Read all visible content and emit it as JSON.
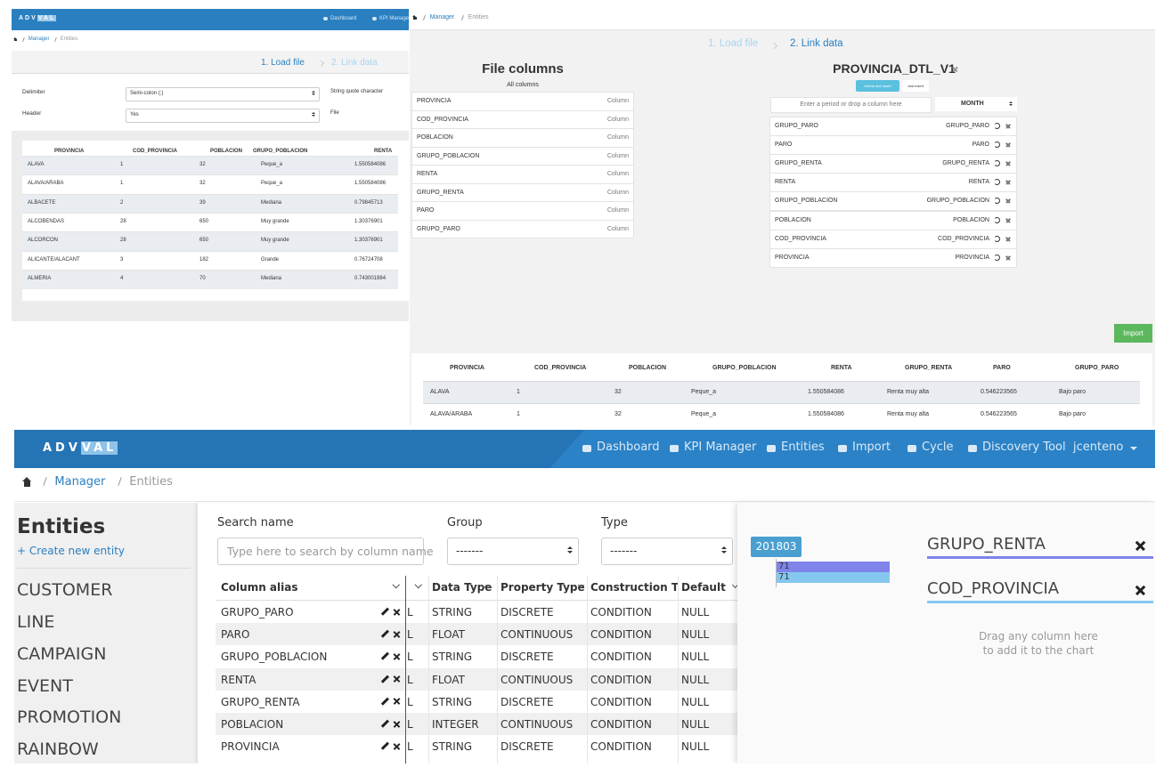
{
  "load_panel": {
    "nav": {
      "logo_a": "ADV",
      "logo_b": "VAL",
      "items": [
        "Dashboard",
        "KPI Manage"
      ]
    },
    "breadcrumb": [
      "Manager",
      "Entities"
    ],
    "steps": [
      "1. Load file",
      "2. Link data"
    ],
    "form": {
      "delimiter_label": "Delimiter",
      "delimiter_value": "Semi-colon (;)",
      "header_label": "Header",
      "header_value": "Yes",
      "quote_label": "String quote character",
      "file_label": "File"
    },
    "table": {
      "columns": [
        "PROVINCIA",
        "COD_PROVINCIA",
        "POBLACION",
        "GRUPO_POBLACION",
        "RENTA"
      ],
      "rows": [
        [
          "ALAVA",
          "1",
          "32",
          "Peque_a",
          "1.550584086"
        ],
        [
          "ALAVA/ARABA",
          "1",
          "32",
          "Peque_a",
          "1.550584086"
        ],
        [
          "ALBACETE",
          "2",
          "39",
          "Mediana",
          "0.79845713"
        ],
        [
          "ALCOBENDAS",
          "28",
          "650",
          "Muy grande",
          "1.30376901"
        ],
        [
          "ALCORCON",
          "28",
          "650",
          "Muy grande",
          "1.30376901"
        ],
        [
          "ALICANTE/ALACANT",
          "3",
          "182",
          "Grande",
          "0.76724708"
        ],
        [
          "ALMERIA",
          "4",
          "70",
          "Mediana",
          "0.743001984"
        ]
      ]
    }
  },
  "link_panel": {
    "breadcrumb": [
      "Manager",
      "Entities"
    ],
    "steps": [
      "1. Load file",
      "2. Link data"
    ],
    "file_columns": {
      "title": "File columns",
      "subtitle": "All columns",
      "items": [
        {
          "name": "PROVINCIA",
          "kind": "Column"
        },
        {
          "name": "COD_PROVINCIA",
          "kind": "Column"
        },
        {
          "name": "POBLACION",
          "kind": "Column"
        },
        {
          "name": "GRUPO_POBLACION",
          "kind": "Column"
        },
        {
          "name": "RENTA",
          "kind": "Column"
        },
        {
          "name": "GRUPO_RENTA",
          "kind": "Column"
        },
        {
          "name": "PARO",
          "kind": "Column"
        },
        {
          "name": "GRUPO_PARO",
          "kind": "Column"
        }
      ]
    },
    "entity": {
      "title": "PROVINCIA_DTL_V1",
      "buttons": [
        "Delete and insert",
        "Just insert"
      ],
      "period_placeholder": "Enter a period or drop a column here",
      "period_unit": "MONTH",
      "mappings": [
        [
          "GRUPO_PARO",
          "GRUPO_PARO"
        ],
        [
          "PARO",
          "PARO"
        ],
        [
          "GRUPO_RENTA",
          "GRUPO_RENTA"
        ],
        [
          "RENTA",
          "RENTA"
        ],
        [
          "GRUPO_POBLACION",
          "GRUPO_POBLACION"
        ],
        [
          "POBLACION",
          "POBLACION"
        ],
        [
          "COD_PROVINCIA",
          "COD_PROVINCIA"
        ],
        [
          "PROVINCIA",
          "PROVINCIA"
        ]
      ]
    },
    "import_button": "Import",
    "table": {
      "columns": [
        "PROVINCIA",
        "COD_PROVINCIA",
        "POBLACION",
        "GRUPO_POBLACION",
        "RENTA",
        "GRUPO_RENTA",
        "PARO",
        "GRUPO_PARO"
      ],
      "rows": [
        [
          "ALAVA",
          "1",
          "32",
          "Peque_a",
          "1.550584086",
          "Renta muy alta",
          "0.546223565",
          "Bajo paro"
        ],
        [
          "ALAVA/ARABA",
          "1",
          "32",
          "Peque_a",
          "1.550584086",
          "Renta muy alta",
          "0.546223565",
          "Bajo paro"
        ]
      ]
    }
  },
  "entities_panel": {
    "nav": {
      "logo_a": "ADV",
      "logo_b": "VAL",
      "items": [
        "Dashboard",
        "KPI Manager",
        "Entities",
        "Import",
        "Cycle",
        "Discovery Tool"
      ],
      "user": "jcenteno"
    },
    "breadcrumb": [
      "Manager",
      "Entities"
    ],
    "sidebar": {
      "title": "Entities",
      "create": "+ Create new entity",
      "items": [
        "CUSTOMER",
        "LINE",
        "CAMPAIGN",
        "EVENT",
        "PROMOTION",
        "RAINBOW"
      ]
    },
    "filters": {
      "search_label": "Search name",
      "search_placeholder": "Type here to search by column name",
      "group_label": "Group",
      "group_value": "-------",
      "type_label": "Type",
      "type_value": "-------"
    },
    "table": {
      "columns": [
        "Column alias",
        "Data Type",
        "Property Type",
        "Construction T",
        "Default"
      ],
      "rows": [
        [
          "GRUPO_PARO",
          "L",
          "STRING",
          "DISCRETE",
          "CONDITION",
          "NULL"
        ],
        [
          "PARO",
          "L",
          "FLOAT",
          "CONTINUOUS",
          "CONDITION",
          "NULL"
        ],
        [
          "GRUPO_POBLACION",
          "L",
          "STRING",
          "DISCRETE",
          "CONDITION",
          "NULL"
        ],
        [
          "RENTA",
          "L",
          "FLOAT",
          "CONTINUOUS",
          "CONDITION",
          "NULL"
        ],
        [
          "GRUPO_RENTA",
          "L",
          "STRING",
          "DISCRETE",
          "CONDITION",
          "NULL"
        ],
        [
          "POBLACION",
          "L",
          "INTEGER",
          "CONTINUOUS",
          "CONDITION",
          "NULL"
        ],
        [
          "PROVINCIA",
          "L",
          "STRING",
          "DISCRETE",
          "CONDITION",
          "NULL"
        ]
      ]
    },
    "chart": {
      "category": "201803",
      "series": [
        {
          "name": "GRUPO_RENTA",
          "color": "#7f83ea",
          "value": 71
        },
        {
          "name": "COD_PROVINCIA",
          "color": "#84c8f0",
          "value": 71
        }
      ],
      "hint": [
        "Drag any column here",
        "to add it to the chart"
      ]
    }
  }
}
